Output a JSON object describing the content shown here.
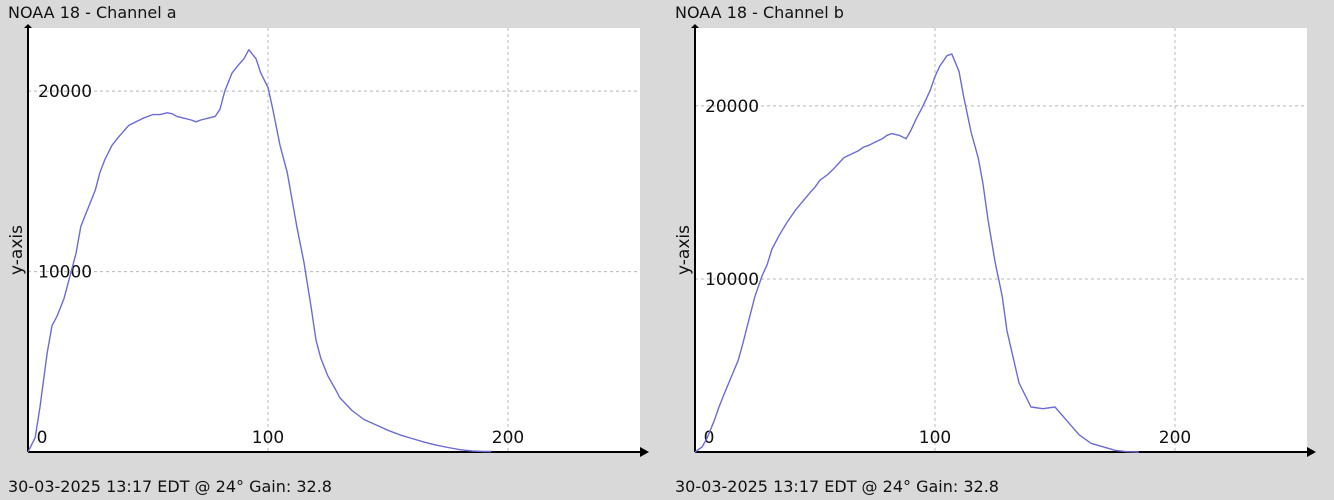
{
  "colors": {
    "background": "#d9d9d9",
    "plot_area": "#ffffff",
    "grid": "#b8b8b8",
    "axis": "#000000",
    "series": "#6b6bd6"
  },
  "chart_data": [
    {
      "type": "line",
      "title": "NOAA 18 - Channel a",
      "footer": "30-03-2025 13:17 EDT @ 24° Gain: 32.8",
      "xlabel": "",
      "ylabel": "y-axis",
      "xlim": [
        0,
        255
      ],
      "ylim": [
        0,
        23500
      ],
      "xticks": [
        0,
        100,
        200
      ],
      "yticks": [
        10000,
        20000
      ],
      "grid": true,
      "series": [
        {
          "x": [
            0,
            3,
            5,
            8,
            10,
            12,
            15,
            18,
            20,
            22,
            25,
            28,
            30,
            32,
            35,
            38,
            40,
            42,
            45,
            48,
            50,
            52,
            55,
            58,
            60,
            62,
            65,
            68,
            70,
            72,
            75,
            78,
            80,
            82,
            85,
            88,
            90,
            92,
            95,
            97,
            100,
            102,
            105,
            108,
            110,
            112,
            115,
            118,
            120,
            122,
            125,
            128,
            130,
            135,
            140,
            145,
            150,
            155,
            160,
            165,
            170,
            175,
            180,
            185,
            190,
            193
          ],
          "y": [
            0,
            800,
            2500,
            5500,
            7000,
            7500,
            8500,
            10000,
            11000,
            12500,
            13500,
            14500,
            15500,
            16200,
            17000,
            17500,
            17800,
            18100,
            18300,
            18500,
            18600,
            18700,
            18700,
            18800,
            18750,
            18600,
            18500,
            18400,
            18300,
            18400,
            18500,
            18600,
            19000,
            20000,
            21000,
            21500,
            21800,
            22300,
            21800,
            21000,
            20200,
            19000,
            17000,
            15500,
            14000,
            12500,
            10500,
            8000,
            6200,
            5200,
            4200,
            3500,
            3000,
            2300,
            1800,
            1500,
            1200,
            950,
            750,
            550,
            380,
            250,
            130,
            60,
            30,
            30
          ]
        }
      ]
    },
    {
      "type": "line",
      "title": "NOAA 18 - Channel b",
      "footer": "30-03-2025 13:17 EDT @ 24° Gain: 32.8",
      "xlabel": "",
      "ylabel": "y-axis",
      "xlim": [
        0,
        255
      ],
      "ylim": [
        0,
        24500
      ],
      "xticks": [
        0,
        100,
        200
      ],
      "yticks": [
        10000,
        20000
      ],
      "grid": true,
      "series": [
        {
          "x": [
            0,
            3,
            5,
            8,
            10,
            12,
            15,
            18,
            20,
            22,
            25,
            28,
            30,
            32,
            35,
            38,
            40,
            42,
            45,
            48,
            50,
            52,
            55,
            58,
            60,
            62,
            65,
            68,
            70,
            72,
            75,
            78,
            80,
            82,
            85,
            88,
            90,
            92,
            95,
            98,
            100,
            102,
            105,
            107,
            110,
            112,
            115,
            118,
            120,
            122,
            125,
            128,
            130,
            135,
            140,
            145,
            150,
            155,
            160,
            165,
            170,
            175,
            180,
            185
          ],
          "y": [
            0,
            300,
            800,
            1800,
            2600,
            3300,
            4300,
            5300,
            6300,
            7400,
            9000,
            10200,
            10800,
            11700,
            12500,
            13200,
            13600,
            14000,
            14500,
            15000,
            15300,
            15700,
            16000,
            16400,
            16700,
            17000,
            17200,
            17400,
            17600,
            17700,
            17900,
            18100,
            18300,
            18400,
            18300,
            18100,
            18600,
            19200,
            20000,
            20900,
            21700,
            22300,
            22900,
            23000,
            22000,
            20500,
            18500,
            17000,
            15500,
            13500,
            11000,
            9000,
            7000,
            4000,
            2600,
            2500,
            2600,
            1800,
            1000,
            500,
            300,
            100,
            20,
            0
          ]
        }
      ]
    }
  ]
}
